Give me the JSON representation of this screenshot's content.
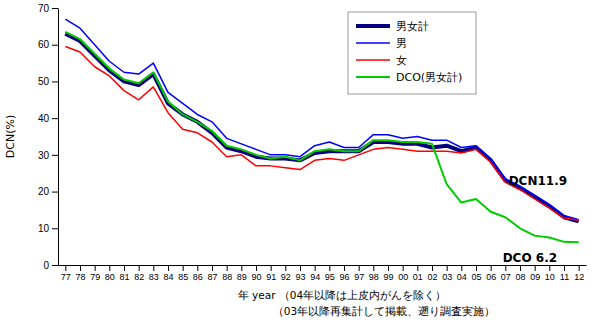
{
  "chart_data": {
    "type": "line",
    "y_label": "DCN(%)",
    "x_label": "年 year （04年以降は上皮内がんを除く）",
    "x_label_note": "（03年以降再集計して掲載、遡り調査実施）",
    "categories": [
      "77",
      "78",
      "79",
      "80",
      "81",
      "82",
      "83",
      "84",
      "85",
      "86",
      "87",
      "88",
      "89",
      "90",
      "91",
      "92",
      "93",
      "94",
      "95",
      "96",
      "97",
      "98",
      "99",
      "00",
      "01",
      "02",
      "03",
      "04",
      "05",
      "06",
      "07",
      "08",
      "09",
      "10",
      "11",
      "12"
    ],
    "series": [
      {
        "name": "男女計",
        "color": "#000080",
        "values": [
          63,
          61,
          57,
          53,
          50,
          49,
          52,
          44,
          41,
          39,
          36,
          32,
          31,
          29.5,
          29,
          29,
          28.5,
          30.5,
          31,
          31,
          31,
          33.5,
          33.5,
          33,
          33,
          32,
          32.5,
          31,
          32,
          28.5,
          23,
          21,
          18.5,
          16,
          13,
          11.9
        ]
      },
      {
        "name": "男",
        "color": "#0000ff",
        "values": [
          67,
          64.5,
          60,
          55.5,
          52.5,
          52,
          55,
          47,
          44,
          41,
          39,
          34.5,
          33,
          31.5,
          30,
          30,
          29.5,
          32.5,
          33.5,
          32,
          32,
          35.5,
          35.5,
          34.5,
          35,
          34,
          34,
          32,
          32.5,
          29,
          23.5,
          21.5,
          19,
          16.5,
          13.5,
          12.3
        ]
      },
      {
        "name": "女",
        "color": "#ff0000",
        "values": [
          59.5,
          58,
          54,
          51.5,
          47.5,
          45,
          48.5,
          41.5,
          37,
          36,
          33.5,
          29.5,
          30,
          27,
          27,
          26.5,
          26,
          28.5,
          29,
          28.5,
          30,
          31.5,
          32,
          31.5,
          31,
          31,
          31,
          30.5,
          31.5,
          28,
          22.5,
          20.5,
          18,
          15.5,
          12.8,
          12.2
        ]
      },
      {
        "name": "DCO(男女計)",
        "color": "#00cc00",
        "values": [
          63.5,
          61.5,
          57.5,
          53.5,
          50.5,
          49.5,
          52.5,
          44.5,
          41,
          39,
          36.5,
          32.5,
          31.5,
          30,
          29,
          29.5,
          28.5,
          31,
          31.5,
          31,
          31,
          34,
          34,
          33.5,
          33.5,
          33,
          22,
          17,
          18,
          14.5,
          13,
          10,
          8,
          7.5,
          6.3,
          6.2
        ]
      }
    ],
    "ylim": [
      0,
      70
    ],
    "yticks": [
      0,
      10,
      20,
      30,
      40,
      50,
      60,
      70
    ],
    "grid": false,
    "legend": "upper right",
    "annotations": [
      {
        "text": "DCN11.9",
        "x": "12",
        "y": 11.9
      },
      {
        "text": "DCO 6.2",
        "x": "12",
        "y": 6.2
      }
    ]
  }
}
